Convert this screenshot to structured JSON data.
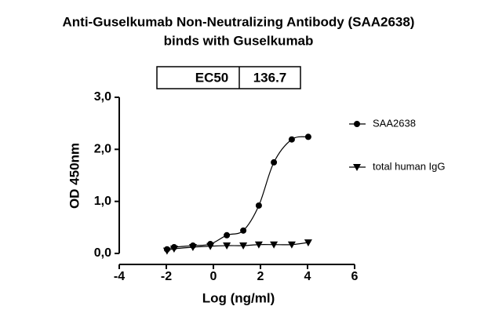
{
  "chart_data": {
    "type": "scatter",
    "title": [
      "Anti-Guselkumab Non-Neutralizing Antibody (SAA2638)",
      "binds with Guselkumab"
    ],
    "table": {
      "label": "EC50",
      "value": 136.7
    },
    "x_label": "Log (ng/ml)",
    "y_label": "OD 450nm",
    "xlim": [
      -4,
      6
    ],
    "xticks": [
      -4,
      -2,
      0,
      2,
      4,
      6
    ],
    "ylim": [
      0,
      3
    ],
    "yticks": [
      {
        "value": 0,
        "label": "0,0"
      },
      {
        "value": 1,
        "label": "1,0"
      },
      {
        "value": 2,
        "label": "2,0"
      },
      {
        "value": 3,
        "label": "3,0"
      }
    ],
    "series": [
      {
        "name": "SAA2638",
        "color": "#000000",
        "marker": "circle",
        "x": [
          -1.97,
          -1.67,
          -0.87,
          -0.13,
          0.57,
          1.27,
          1.93,
          2.57,
          3.33,
          4.03
        ],
        "values": [
          0.08,
          0.12,
          0.15,
          0.18,
          0.35,
          0.44,
          0.92,
          1.75,
          2.19,
          2.24
        ]
      },
      {
        "name": "total human IgG",
        "color": "#000000",
        "marker": "triangle-down",
        "x": [
          -1.97,
          -1.67,
          -0.87,
          -0.13,
          0.57,
          1.27,
          1.93,
          2.57,
          3.33,
          4.03
        ],
        "values": [
          0.05,
          0.09,
          0.12,
          0.14,
          0.15,
          0.15,
          0.17,
          0.17,
          0.17,
          0.21
        ]
      }
    ]
  }
}
